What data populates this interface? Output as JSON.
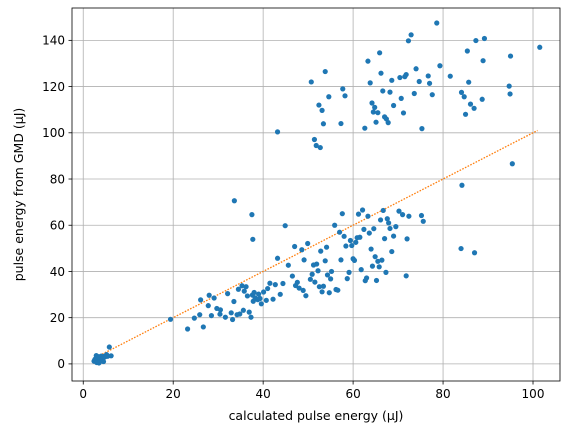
{
  "chart_data": {
    "type": "scatter",
    "xlabel": "calculated pulse energy (μJ)",
    "ylabel": "pulse energy from GMD (μJ)",
    "xlim": [
      -2.5,
      106.0
    ],
    "ylim": [
      -7.4,
      154.0
    ],
    "xticks": [
      0,
      20,
      40,
      60,
      80,
      100
    ],
    "yticks": [
      0,
      20,
      40,
      60,
      80,
      100,
      120,
      140
    ],
    "grid": true,
    "colors": {
      "points": "#1f77b4",
      "fit": "#ff7f0e",
      "grid": "#b0b0b0"
    },
    "series": [
      {
        "kind": "points",
        "x": [
          2.4,
          2.6,
          2.8,
          3.0,
          3.1,
          3.2,
          3.3,
          3.4,
          3.5,
          3.6,
          3.7,
          3.8,
          3.9,
          4.0,
          4.1,
          4.2,
          4.4,
          4.6,
          4.8,
          5.0,
          5.2,
          5.4,
          5.8,
          6.2,
          3.0,
          3.5,
          4.5,
          2.9,
          3.3,
          19.4,
          23.2,
          24.7,
          25.9,
          26.1,
          26.7,
          27.8,
          28.0,
          28.5,
          29.1,
          29.7,
          30.4,
          30.5,
          31.6,
          32.1,
          32.9,
          33.2,
          33.5,
          34.2,
          34.5,
          34.8,
          35.3,
          35.6,
          35.8,
          36.2,
          36.5,
          36.9,
          37.3,
          37.6,
          37.8,
          38.0,
          38.2,
          38.8,
          39.0,
          39.3,
          39.6,
          40.1,
          40.7,
          41.0,
          41.5,
          42.2,
          42.7,
          43.2,
          43.8,
          44.4,
          44.9,
          45.6,
          46.5,
          47.0,
          47.2,
          47.6,
          48.0,
          48.6,
          48.9,
          49.1,
          49.5,
          49.9,
          50.5,
          50.9,
          51.2,
          51.5,
          51.9,
          52.2,
          52.5,
          52.8,
          53.1,
          53.4,
          53.8,
          54.1,
          54.3,
          54.7,
          55.0,
          55.2,
          55.9,
          56.2,
          56.6,
          57.0,
          57.3,
          57.6,
          58.0,
          58.4,
          58.7,
          59.1,
          59.4,
          59.7,
          60.0,
          60.3,
          60.6,
          60.9,
          61.2,
          61.5,
          61.8,
          62.1,
          62.4,
          62.7,
          63.0,
          63.3,
          63.6,
          64.0,
          64.3,
          64.6,
          64.9,
          65.2,
          65.5,
          65.8,
          66.1,
          66.4,
          66.7,
          67.0,
          67.3,
          67.6,
          67.9,
          68.2,
          68.6,
          69.0,
          69.5,
          70.2,
          71.0,
          71.8,
          72.0,
          72.4,
          75.2,
          75.6,
          33.6,
          37.5,
          37.7,
          43.2,
          50.7,
          51.4,
          51.8,
          52.4,
          52.7,
          53.1,
          53.4,
          53.8,
          54.6,
          57.3,
          57.7,
          58.2,
          62.6,
          63.3,
          63.8,
          64.2,
          64.5,
          64.8,
          65.1,
          65.5,
          65.9,
          66.2,
          66.6,
          67.0,
          67.4,
          67.8,
          68.2,
          68.6,
          69.0,
          70.4,
          70.7,
          71.2,
          71.5,
          71.8,
          72.3,
          72.9,
          73.6,
          74.0,
          74.7,
          75.3,
          76.7,
          77.0,
          77.6,
          78.6,
          79.3,
          81.6,
          84.1,
          84.7,
          85.0,
          85.4,
          85.7,
          86.1,
          86.9,
          87.3,
          88.7,
          88.9,
          89.2,
          94.7,
          94.9,
          95.0,
          101.5,
          84.0,
          84.2,
          87.0,
          95.4
        ],
        "y": [
          1.2,
          2.0,
          1.5,
          2.8,
          0.9,
          1.8,
          2.5,
          3.1,
          1.2,
          2.3,
          2.9,
          1.6,
          2.6,
          3.4,
          2.2,
          1.9,
          2.4,
          3.2,
          3.0,
          3.6,
          4.0,
          3.3,
          7.3,
          3.5,
          0.6,
          0.4,
          1.0,
          3.6,
          2.8,
          19.3,
          15.1,
          19.8,
          21.3,
          27.7,
          16.0,
          25.2,
          29.7,
          20.9,
          28.5,
          24.0,
          21.5,
          23.4,
          20.2,
          30.4,
          22.1,
          19.2,
          27.0,
          21.3,
          32.3,
          21.6,
          33.8,
          23.2,
          31.5,
          33.4,
          29.4,
          22.4,
          20.2,
          29.8,
          27.1,
          30.9,
          28.6,
          27.8,
          30.2,
          28.3,
          26.0,
          31.1,
          27.5,
          32.6,
          34.9,
          28.0,
          34.3,
          45.7,
          30.1,
          34.8,
          59.8,
          42.7,
          38.0,
          50.8,
          33.9,
          35.3,
          32.8,
          49.4,
          31.8,
          45.0,
          29.5,
          52.1,
          36.6,
          38.8,
          42.8,
          35.4,
          43.2,
          40.3,
          33.4,
          48.8,
          31.2,
          33.6,
          44.6,
          50.5,
          38.5,
          30.8,
          36.8,
          40.0,
          60.0,
          32.2,
          31.9,
          57.0,
          45.0,
          65.0,
          55.2,
          51.0,
          36.9,
          39.6,
          53.4,
          51.2,
          45.5,
          44.8,
          52.6,
          54.6,
          64.8,
          54.8,
          40.8,
          66.6,
          58.2,
          36.0,
          37.2,
          63.9,
          56.6,
          49.7,
          42.3,
          58.5,
          46.4,
          36.1,
          44.4,
          42.0,
          62.3,
          44.9,
          66.4,
          54.2,
          39.6,
          62.8,
          61.0,
          58.6,
          48.6,
          55.3,
          59.4,
          66.1,
          64.6,
          38.1,
          54.1,
          63.9,
          64.2,
          61.7,
          70.6,
          64.6,
          53.9,
          100.4,
          122.0,
          97.1,
          94.5,
          112.0,
          93.6,
          109.7,
          103.9,
          126.5,
          115.6,
          104.0,
          119.0,
          116.0,
          102.0,
          131.0,
          121.6,
          112.9,
          109.0,
          111.0,
          104.6,
          108.7,
          134.6,
          125.8,
          118.1,
          106.9,
          106.0,
          104.4,
          117.6,
          122.7,
          111.8,
          123.9,
          114.9,
          108.6,
          124.3,
          125.2,
          139.8,
          142.4,
          117.0,
          127.7,
          122.2,
          101.8,
          124.6,
          121.4,
          116.5,
          147.5,
          129.0,
          124.5,
          117.5,
          115.6,
          108.0,
          135.4,
          121.9,
          112.4,
          110.6,
          139.9,
          114.5,
          131.2,
          140.8,
          120.2,
          116.8,
          133.2,
          137.0,
          49.9,
          77.3,
          48.1,
          86.6
        ]
      },
      {
        "kind": "fit-line",
        "x": [
          2.4,
          101.0
        ],
        "y": [
          2.4,
          101.0
        ]
      }
    ]
  }
}
